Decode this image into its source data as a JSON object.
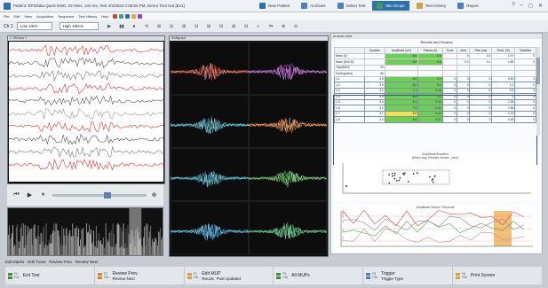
{
  "window": {
    "title": "Patient: EPSData Quick EMG, 02 Mins, 143 ms, Test 4/2/2023 2:08:50 PM, Demo Trial Out [Ex1]",
    "tabs": [
      {
        "label": "New Patient",
        "color": "#2f6db5",
        "active": false
      },
      {
        "label": "Archives",
        "color": "#4a7fc0",
        "active": false
      },
      {
        "label": "Select Test",
        "color": "#4a7fc0",
        "active": false
      },
      {
        "label": "Mio Scope",
        "color": "#3a9e5a",
        "active": true
      },
      {
        "label": "Test History",
        "color": "#d0a53a",
        "active": false
      },
      {
        "label": "Report",
        "color": "#4a7fc0",
        "active": false
      }
    ],
    "controls": [
      "?",
      "–",
      "◻",
      "✕"
    ]
  },
  "menu": [
    "File",
    "Edit",
    "View",
    "Acquisition",
    "Sequence",
    "Test History",
    "Help"
  ],
  "toolbar": {
    "channel_label": "Ch 1",
    "filter1": "Low 10Hz",
    "filter2": "High 10kHz",
    "btn_labels": [
      "▶",
      "▮▮",
      "⏹",
      "⟲",
      "⊞",
      "⊟",
      "⊞",
      "⊟",
      "⊞",
      "⊟",
      "⊞",
      "⊟",
      "◐",
      "⇆",
      "⊕",
      "⊖"
    ]
  },
  "panels": {
    "left_head": "1: Window 1",
    "middle_head": "Multigraph",
    "right_head": "Analysis table"
  },
  "table": {
    "title": "Results and Params",
    "headers": [
      "",
      "Duration",
      "Amplitude (mV)",
      "Phases (#)",
      "Turns",
      "Area",
      "Rise (ms)",
      "Thick. (%)",
      "Satellites"
    ],
    "rows": [
      [
        "Mean (0)",
        "",
        "6.8",
        "0.3",
        "",
        "0",
        "0.2",
        "1.97",
        "0"
      ],
      [
        "Mean (NUCS)",
        "",
        "6.8",
        "0.8",
        "",
        "0.3",
        "0.1",
        "1.55",
        "0"
      ],
      [
        "Total(SUR)",
        "20",
        "",
        "",
        "",
        "",
        "",
        "",
        ""
      ],
      [
        "Ch(Segment)",
        "60",
        "",
        "",
        "",
        "",
        "",
        "",
        ""
      ],
      [
        "1-1",
        "3.5",
        "6.6",
        "0.2",
        "0",
        "0",
        "0",
        "0.30",
        "1"
      ],
      [
        "1-2",
        "3.9",
        "8.2",
        "0.4",
        "0",
        "0",
        "0",
        "1.2",
        "0"
      ],
      [
        "1-3",
        "4.1",
        "7.1",
        "0.18",
        "0",
        "0",
        "0",
        "0.9",
        "0"
      ],
      [
        "1-4",
        "3.8",
        "6.8",
        "0.3",
        "0",
        "0",
        "0",
        "1",
        "0"
      ],
      [
        "1-5",
        "4.4",
        "6.1",
        "0.25",
        "0",
        "0",
        "0",
        "1.35",
        "0"
      ],
      [
        "1-6",
        "3.2",
        "7.4",
        "0.44",
        "0",
        "0",
        "0",
        "1.56",
        "0"
      ],
      [
        "1-7",
        "3.7",
        "6.9",
        "0.42",
        "0",
        "0",
        "0",
        "1.22",
        "0"
      ],
      [
        "1-8",
        "4.0",
        "6.5",
        "0.31",
        "0",
        "0",
        "0",
        "0.18",
        "0"
      ]
    ],
    "highlight": {
      "green": [
        [
          0,
          2
        ],
        [
          0,
          3
        ],
        [
          1,
          2
        ],
        [
          1,
          3
        ],
        [
          4,
          2
        ],
        [
          5,
          2
        ],
        [
          6,
          2
        ],
        [
          7,
          2
        ],
        [
          8,
          2
        ],
        [
          9,
          2
        ],
        [
          10,
          2
        ],
        [
          11,
          2
        ],
        [
          4,
          3
        ],
        [
          5,
          3
        ],
        [
          6,
          3
        ],
        [
          7,
          3
        ],
        [
          8,
          3
        ],
        [
          9,
          3
        ],
        [
          10,
          3
        ],
        [
          11,
          3
        ]
      ],
      "yellow": [
        [
          10,
          2
        ]
      ]
    }
  },
  "charts": {
    "scatter_title": "Amplitude/Duration",
    "scatter_subtitle": "(Mean avg. Results Values - pool)",
    "line_title": "Amplitude Series / Seconds"
  },
  "bottom_labels": [
    "Edit Marks",
    "Edit Trace",
    "Review Prev",
    "Review Next"
  ],
  "footer": [
    {
      "key1": "F1",
      "key2": "F1b",
      "label": "Exit Test",
      "color": "#4a8a3a"
    },
    {
      "key1": "F2",
      "key2": "F2b",
      "label": "Review Prev.",
      "label2": "Review Next",
      "color": "#d08a2a"
    },
    {
      "key1": "F3",
      "key2": "F3b",
      "label": "Edit MUP",
      "label2": "Recalc. Post Updated",
      "color": "#d0a53a"
    },
    {
      "key1": "F4",
      "key2": "F4b",
      "label": "All MUPs",
      "color": "#4a8a3a"
    },
    {
      "key1": "F5",
      "key2": "F5b",
      "label": "Trigger",
      "label2": "Trigger Type",
      "color": "#4a7fc0"
    },
    {
      "key1": "F6",
      "key2": "F6b",
      "label": "Print Screen",
      "color": "#d0a53a"
    }
  ]
}
